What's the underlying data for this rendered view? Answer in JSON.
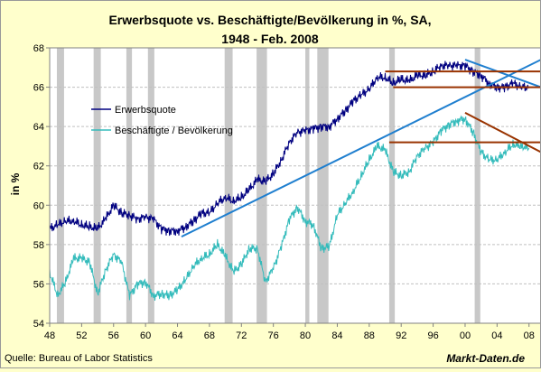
{
  "chart_data": {
    "type": "line",
    "title_line1": "Erwerbsquote vs. Beschäftigte/Bevölkerung in %, SA,",
    "title_line2": "1948 - Feb. 2008",
    "ylabel": "in %",
    "ylim": [
      54,
      68
    ],
    "yticks": [
      "54",
      "56",
      "58",
      "60",
      "62",
      "64",
      "66",
      "68"
    ],
    "xlim": [
      1948,
      2009.5
    ],
    "xticks": [
      {
        "year": 1948,
        "label": "48"
      },
      {
        "year": 1952,
        "label": "52"
      },
      {
        "year": 1956,
        "label": "56"
      },
      {
        "year": 1960,
        "label": "60"
      },
      {
        "year": 1964,
        "label": "64"
      },
      {
        "year": 1968,
        "label": "68"
      },
      {
        "year": 1972,
        "label": "72"
      },
      {
        "year": 1976,
        "label": "76"
      },
      {
        "year": 1980,
        "label": "80"
      },
      {
        "year": 1984,
        "label": "84"
      },
      {
        "year": 1988,
        "label": "88"
      },
      {
        "year": 1992,
        "label": "92"
      },
      {
        "year": 1996,
        "label": "96"
      },
      {
        "year": 2000,
        "label": "00"
      },
      {
        "year": 2004,
        "label": "04"
      },
      {
        "year": 2008,
        "label": "08"
      }
    ],
    "grid": true,
    "legend_position": "upper-left",
    "recessions": [
      [
        1948.9,
        1949.8
      ],
      [
        1953.5,
        1954.4
      ],
      [
        1957.6,
        1958.3
      ],
      [
        1960.3,
        1961.1
      ],
      [
        1969.9,
        1970.9
      ],
      [
        1973.9,
        1975.2
      ],
      [
        1980.0,
        1980.5
      ],
      [
        1981.5,
        1982.9
      ],
      [
        1990.5,
        1991.2
      ],
      [
        2001.2,
        2001.9
      ]
    ],
    "series": [
      {
        "name": "Erwerbsquote",
        "color": "#000080",
        "x": [
          1948,
          1949,
          1950,
          1951,
          1952,
          1953,
          1954,
          1955,
          1956,
          1957,
          1958,
          1959,
          1960,
          1961,
          1962,
          1963,
          1964,
          1965,
          1966,
          1967,
          1968,
          1969,
          1970,
          1971,
          1972,
          1973,
          1974,
          1975,
          1976,
          1977,
          1978,
          1979,
          1980,
          1981,
          1982,
          1983,
          1984,
          1985,
          1986,
          1987,
          1988,
          1989,
          1990,
          1991,
          1992,
          1993,
          1994,
          1995,
          1996,
          1997,
          1998,
          1999,
          2000,
          2001,
          2002,
          2003,
          2004,
          2005,
          2006,
          2007,
          2008
        ],
        "values": [
          58.8,
          59.0,
          59.2,
          59.2,
          59.0,
          58.9,
          58.8,
          59.3,
          60.0,
          59.6,
          59.5,
          59.3,
          59.4,
          59.3,
          58.8,
          58.7,
          58.7,
          58.9,
          59.2,
          59.6,
          59.6,
          60.1,
          60.4,
          60.2,
          60.4,
          60.8,
          61.3,
          61.2,
          61.6,
          62.3,
          63.2,
          63.7,
          63.8,
          63.9,
          64.0,
          64.0,
          64.4,
          64.8,
          65.3,
          65.6,
          65.9,
          66.5,
          66.5,
          66.2,
          66.4,
          66.3,
          66.6,
          66.6,
          66.8,
          67.1,
          67.1,
          67.1,
          67.1,
          66.8,
          66.6,
          66.2,
          66.0,
          66.0,
          66.2,
          66.0,
          66.0
        ]
      },
      {
        "name": "Beschäftigte / Bevölkerung",
        "color": "#33bbbb",
        "x": [
          1948,
          1949,
          1950,
          1951,
          1952,
          1953,
          1954,
          1955,
          1956,
          1957,
          1958,
          1959,
          1960,
          1961,
          1962,
          1963,
          1964,
          1965,
          1966,
          1967,
          1968,
          1969,
          1970,
          1971,
          1972,
          1973,
          1974,
          1975,
          1976,
          1977,
          1978,
          1979,
          1980,
          1981,
          1982,
          1983,
          1984,
          1985,
          1986,
          1987,
          1988,
          1989,
          1990,
          1991,
          1992,
          1993,
          1994,
          1995,
          1996,
          1997,
          1998,
          1999,
          2000,
          2001,
          2002,
          2003,
          2004,
          2005,
          2006,
          2007,
          2008
        ],
        "values": [
          56.6,
          55.4,
          56.1,
          57.3,
          57.3,
          57.1,
          55.5,
          56.7,
          57.5,
          57.1,
          55.4,
          56.0,
          56.1,
          55.4,
          55.5,
          55.4,
          55.7,
          56.2,
          56.9,
          57.3,
          57.5,
          58.0,
          57.4,
          56.6,
          57.0,
          57.8,
          57.8,
          56.1,
          56.8,
          57.9,
          59.3,
          59.9,
          59.2,
          59.0,
          57.8,
          57.9,
          59.5,
          60.1,
          60.7,
          61.5,
          62.3,
          63.0,
          62.8,
          61.7,
          61.5,
          61.7,
          62.5,
          62.9,
          63.2,
          63.8,
          64.1,
          64.3,
          64.4,
          63.7,
          62.7,
          62.3,
          62.3,
          62.7,
          63.1,
          63.0,
          62.9
        ]
      }
    ],
    "trendlines": [
      {
        "color": "#1f7fcf",
        "x": [
          1964.5,
          2009.5
        ],
        "y": [
          58.4,
          67.4
        ]
      },
      {
        "color": "#1f7fcf",
        "x": [
          2000.0,
          2009.5
        ],
        "y": [
          67.4,
          66.0
        ]
      },
      {
        "color": "#993300",
        "x": [
          1990.0,
          2009.5
        ],
        "y": [
          66.8,
          66.8
        ]
      },
      {
        "color": "#993300",
        "x": [
          1991.0,
          2009.5
        ],
        "y": [
          66.0,
          66.0
        ]
      },
      {
        "color": "#993300",
        "x": [
          1990.5,
          2009.5
        ],
        "y": [
          63.2,
          63.2
        ]
      },
      {
        "color": "#993300",
        "x": [
          2000.0,
          2009.5
        ],
        "y": [
          64.7,
          62.7
        ]
      }
    ]
  },
  "source": "Quelle: Bureau of Labor Statistics",
  "brand": "Markt-Daten.de"
}
